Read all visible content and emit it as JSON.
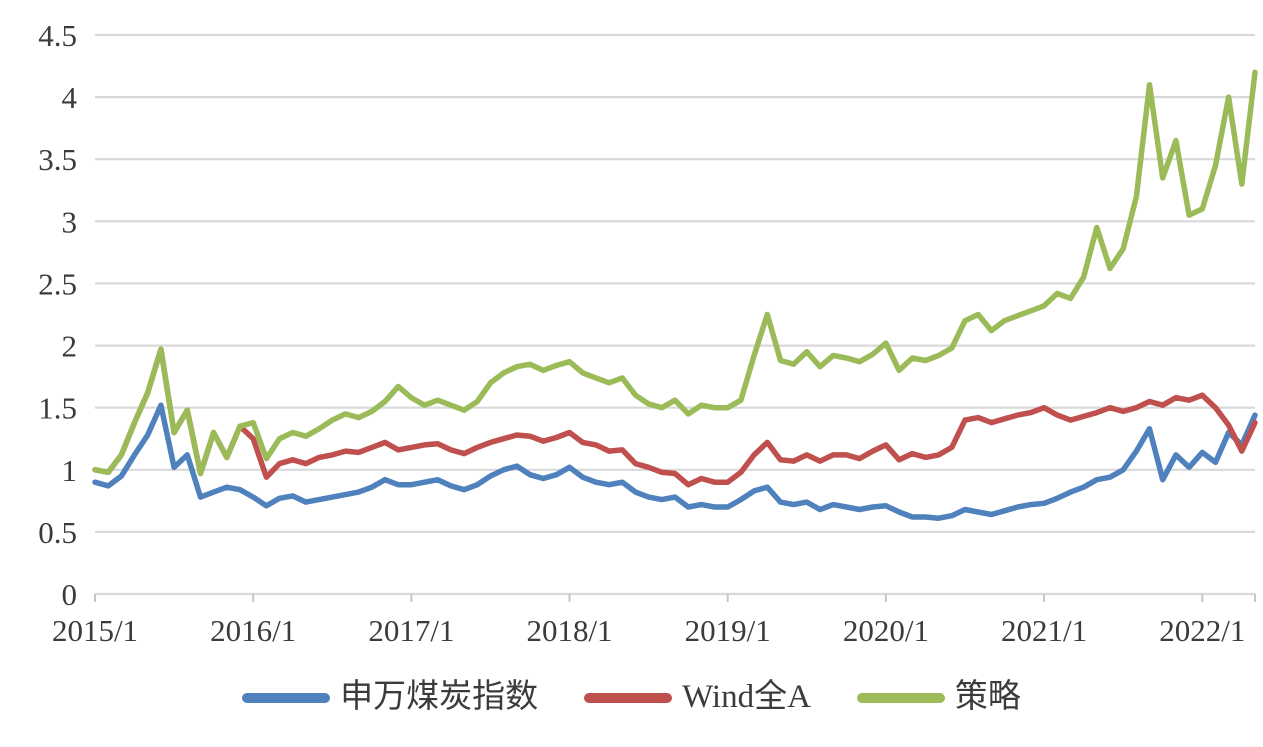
{
  "chart_data": {
    "type": "line",
    "title": "",
    "xlabel": "",
    "ylabel": "",
    "x_start": "2015/1",
    "x_frequency": "monthly",
    "x_tick_labels": [
      "2015/1",
      "2016/1",
      "2017/1",
      "2018/1",
      "2019/1",
      "2020/1",
      "2021/1",
      "2022/1"
    ],
    "y_ticks": [
      0,
      0.5,
      1,
      1.5,
      2,
      2.5,
      3,
      3.5,
      4,
      4.5
    ],
    "y_tick_labels": [
      "0",
      "0.5",
      "1",
      "1.5",
      "2",
      "2.5",
      "3",
      "3.5",
      "4",
      "4.5"
    ],
    "ylim": [
      0,
      4.5
    ],
    "grid": "horizontal",
    "gridline_color": "#d9d9d9",
    "legend_position": "bottom",
    "series": [
      {
        "name": "申万煤炭指数",
        "color": "#4F81BD",
        "values": [
          0.9,
          0.87,
          0.95,
          1.12,
          1.28,
          1.52,
          1.02,
          1.12,
          0.78,
          0.82,
          0.86,
          0.84,
          0.78,
          0.71,
          0.77,
          0.79,
          0.74,
          0.76,
          0.78,
          0.8,
          0.82,
          0.86,
          0.92,
          0.88,
          0.88,
          0.9,
          0.92,
          0.87,
          0.84,
          0.88,
          0.95,
          1.0,
          1.03,
          0.96,
          0.93,
          0.96,
          1.02,
          0.94,
          0.9,
          0.88,
          0.9,
          0.82,
          0.78,
          0.76,
          0.78,
          0.7,
          0.72,
          0.7,
          0.7,
          0.76,
          0.83,
          0.86,
          0.74,
          0.72,
          0.74,
          0.68,
          0.72,
          0.7,
          0.68,
          0.7,
          0.71,
          0.66,
          0.62,
          0.62,
          0.61,
          0.63,
          0.68,
          0.66,
          0.64,
          0.67,
          0.7,
          0.72,
          0.73,
          0.77,
          0.82,
          0.86,
          0.92,
          0.94,
          1.0,
          1.15,
          1.33,
          0.92,
          1.12,
          1.02,
          1.14,
          1.06,
          1.3,
          1.2,
          1.44
        ]
      },
      {
        "name": "Wind全A",
        "color": "#C0504D",
        "values": [
          1.0,
          0.98,
          1.12,
          1.38,
          1.62,
          1.97,
          1.3,
          1.48,
          0.97,
          1.3,
          1.1,
          1.35,
          1.25,
          0.94,
          1.05,
          1.08,
          1.05,
          1.1,
          1.12,
          1.15,
          1.14,
          1.18,
          1.22,
          1.16,
          1.18,
          1.2,
          1.21,
          1.16,
          1.13,
          1.18,
          1.22,
          1.25,
          1.28,
          1.27,
          1.23,
          1.26,
          1.3,
          1.22,
          1.2,
          1.15,
          1.16,
          1.05,
          1.02,
          0.98,
          0.97,
          0.88,
          0.93,
          0.9,
          0.9,
          0.98,
          1.12,
          1.22,
          1.08,
          1.07,
          1.12,
          1.07,
          1.12,
          1.12,
          1.09,
          1.15,
          1.2,
          1.08,
          1.13,
          1.1,
          1.12,
          1.18,
          1.4,
          1.42,
          1.38,
          1.41,
          1.44,
          1.46,
          1.5,
          1.44,
          1.4,
          1.43,
          1.46,
          1.5,
          1.47,
          1.5,
          1.55,
          1.52,
          1.58,
          1.56,
          1.6,
          1.5,
          1.36,
          1.15,
          1.38
        ]
      },
      {
        "name": "策略",
        "color": "#9BBB59",
        "values": [
          1.0,
          0.98,
          1.12,
          1.38,
          1.62,
          1.97,
          1.3,
          1.48,
          0.97,
          1.3,
          1.1,
          1.35,
          1.38,
          1.09,
          1.25,
          1.3,
          1.27,
          1.33,
          1.4,
          1.45,
          1.42,
          1.47,
          1.55,
          1.67,
          1.58,
          1.52,
          1.56,
          1.52,
          1.48,
          1.55,
          1.7,
          1.78,
          1.83,
          1.85,
          1.8,
          1.84,
          1.87,
          1.78,
          1.74,
          1.7,
          1.74,
          1.6,
          1.53,
          1.5,
          1.56,
          1.45,
          1.52,
          1.5,
          1.5,
          1.56,
          1.92,
          2.25,
          1.88,
          1.85,
          1.95,
          1.83,
          1.92,
          1.9,
          1.87,
          1.93,
          2.02,
          1.8,
          1.9,
          1.88,
          1.92,
          1.98,
          2.2,
          2.25,
          2.12,
          2.2,
          2.24,
          2.28,
          2.32,
          2.42,
          2.38,
          2.55,
          2.95,
          2.62,
          2.78,
          3.2,
          4.1,
          3.35,
          3.65,
          3.05,
          3.1,
          3.45,
          4.0,
          3.3,
          4.2
        ]
      }
    ]
  }
}
